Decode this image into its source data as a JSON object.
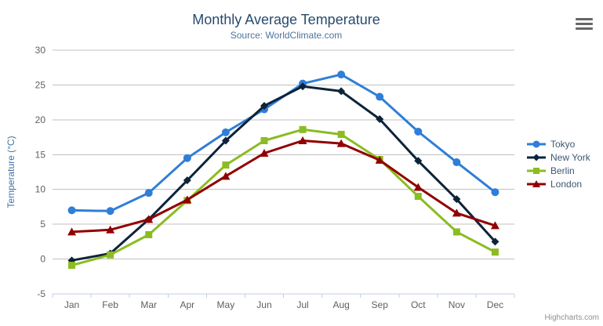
{
  "chart_data": {
    "type": "line",
    "title": "Monthly Average Temperature",
    "subtitle": "Source: WorldClimate.com",
    "categories": [
      "Jan",
      "Feb",
      "Mar",
      "Apr",
      "May",
      "Jun",
      "Jul",
      "Aug",
      "Sep",
      "Oct",
      "Nov",
      "Dec"
    ],
    "xlabel": "",
    "ylabel": "Temperature (°C)",
    "ylim": [
      -5,
      30
    ],
    "ytick_interval": 5,
    "grid": true,
    "legend_position": "right",
    "series": [
      {
        "name": "Tokyo",
        "color": "#2f7ed8",
        "marker": "circle",
        "values": [
          7.0,
          6.9,
          9.5,
          14.5,
          18.2,
          21.5,
          25.2,
          26.5,
          23.3,
          18.3,
          13.9,
          9.6
        ]
      },
      {
        "name": "New York",
        "color": "#0d233a",
        "marker": "diamond",
        "values": [
          -0.2,
          0.8,
          5.7,
          11.3,
          17.0,
          22.0,
          24.8,
          24.1,
          20.1,
          14.1,
          8.6,
          2.5
        ]
      },
      {
        "name": "Berlin",
        "color": "#8bbc21",
        "marker": "square",
        "values": [
          -0.9,
          0.6,
          3.5,
          8.4,
          13.5,
          17.0,
          18.6,
          17.9,
          14.3,
          9.0,
          3.9,
          1.0
        ]
      },
      {
        "name": "London",
        "color": "#910000",
        "marker": "triangle",
        "values": [
          3.9,
          4.2,
          5.7,
          8.5,
          11.9,
          15.2,
          17.0,
          16.6,
          14.2,
          10.3,
          6.6,
          4.8
        ]
      }
    ]
  },
  "credits": "Highcharts.com",
  "icons": {
    "export_menu": "hamburger-icon"
  },
  "colors": {
    "title": "#274b6d",
    "subtitle": "#4d759e",
    "axis_label": "#606060",
    "y_axis_title": "#4572a7",
    "grid_line": "#c0c0c0",
    "axis_line": "#c0d0e0",
    "legend_text": "#3e576f",
    "credits_text": "#909090"
  }
}
